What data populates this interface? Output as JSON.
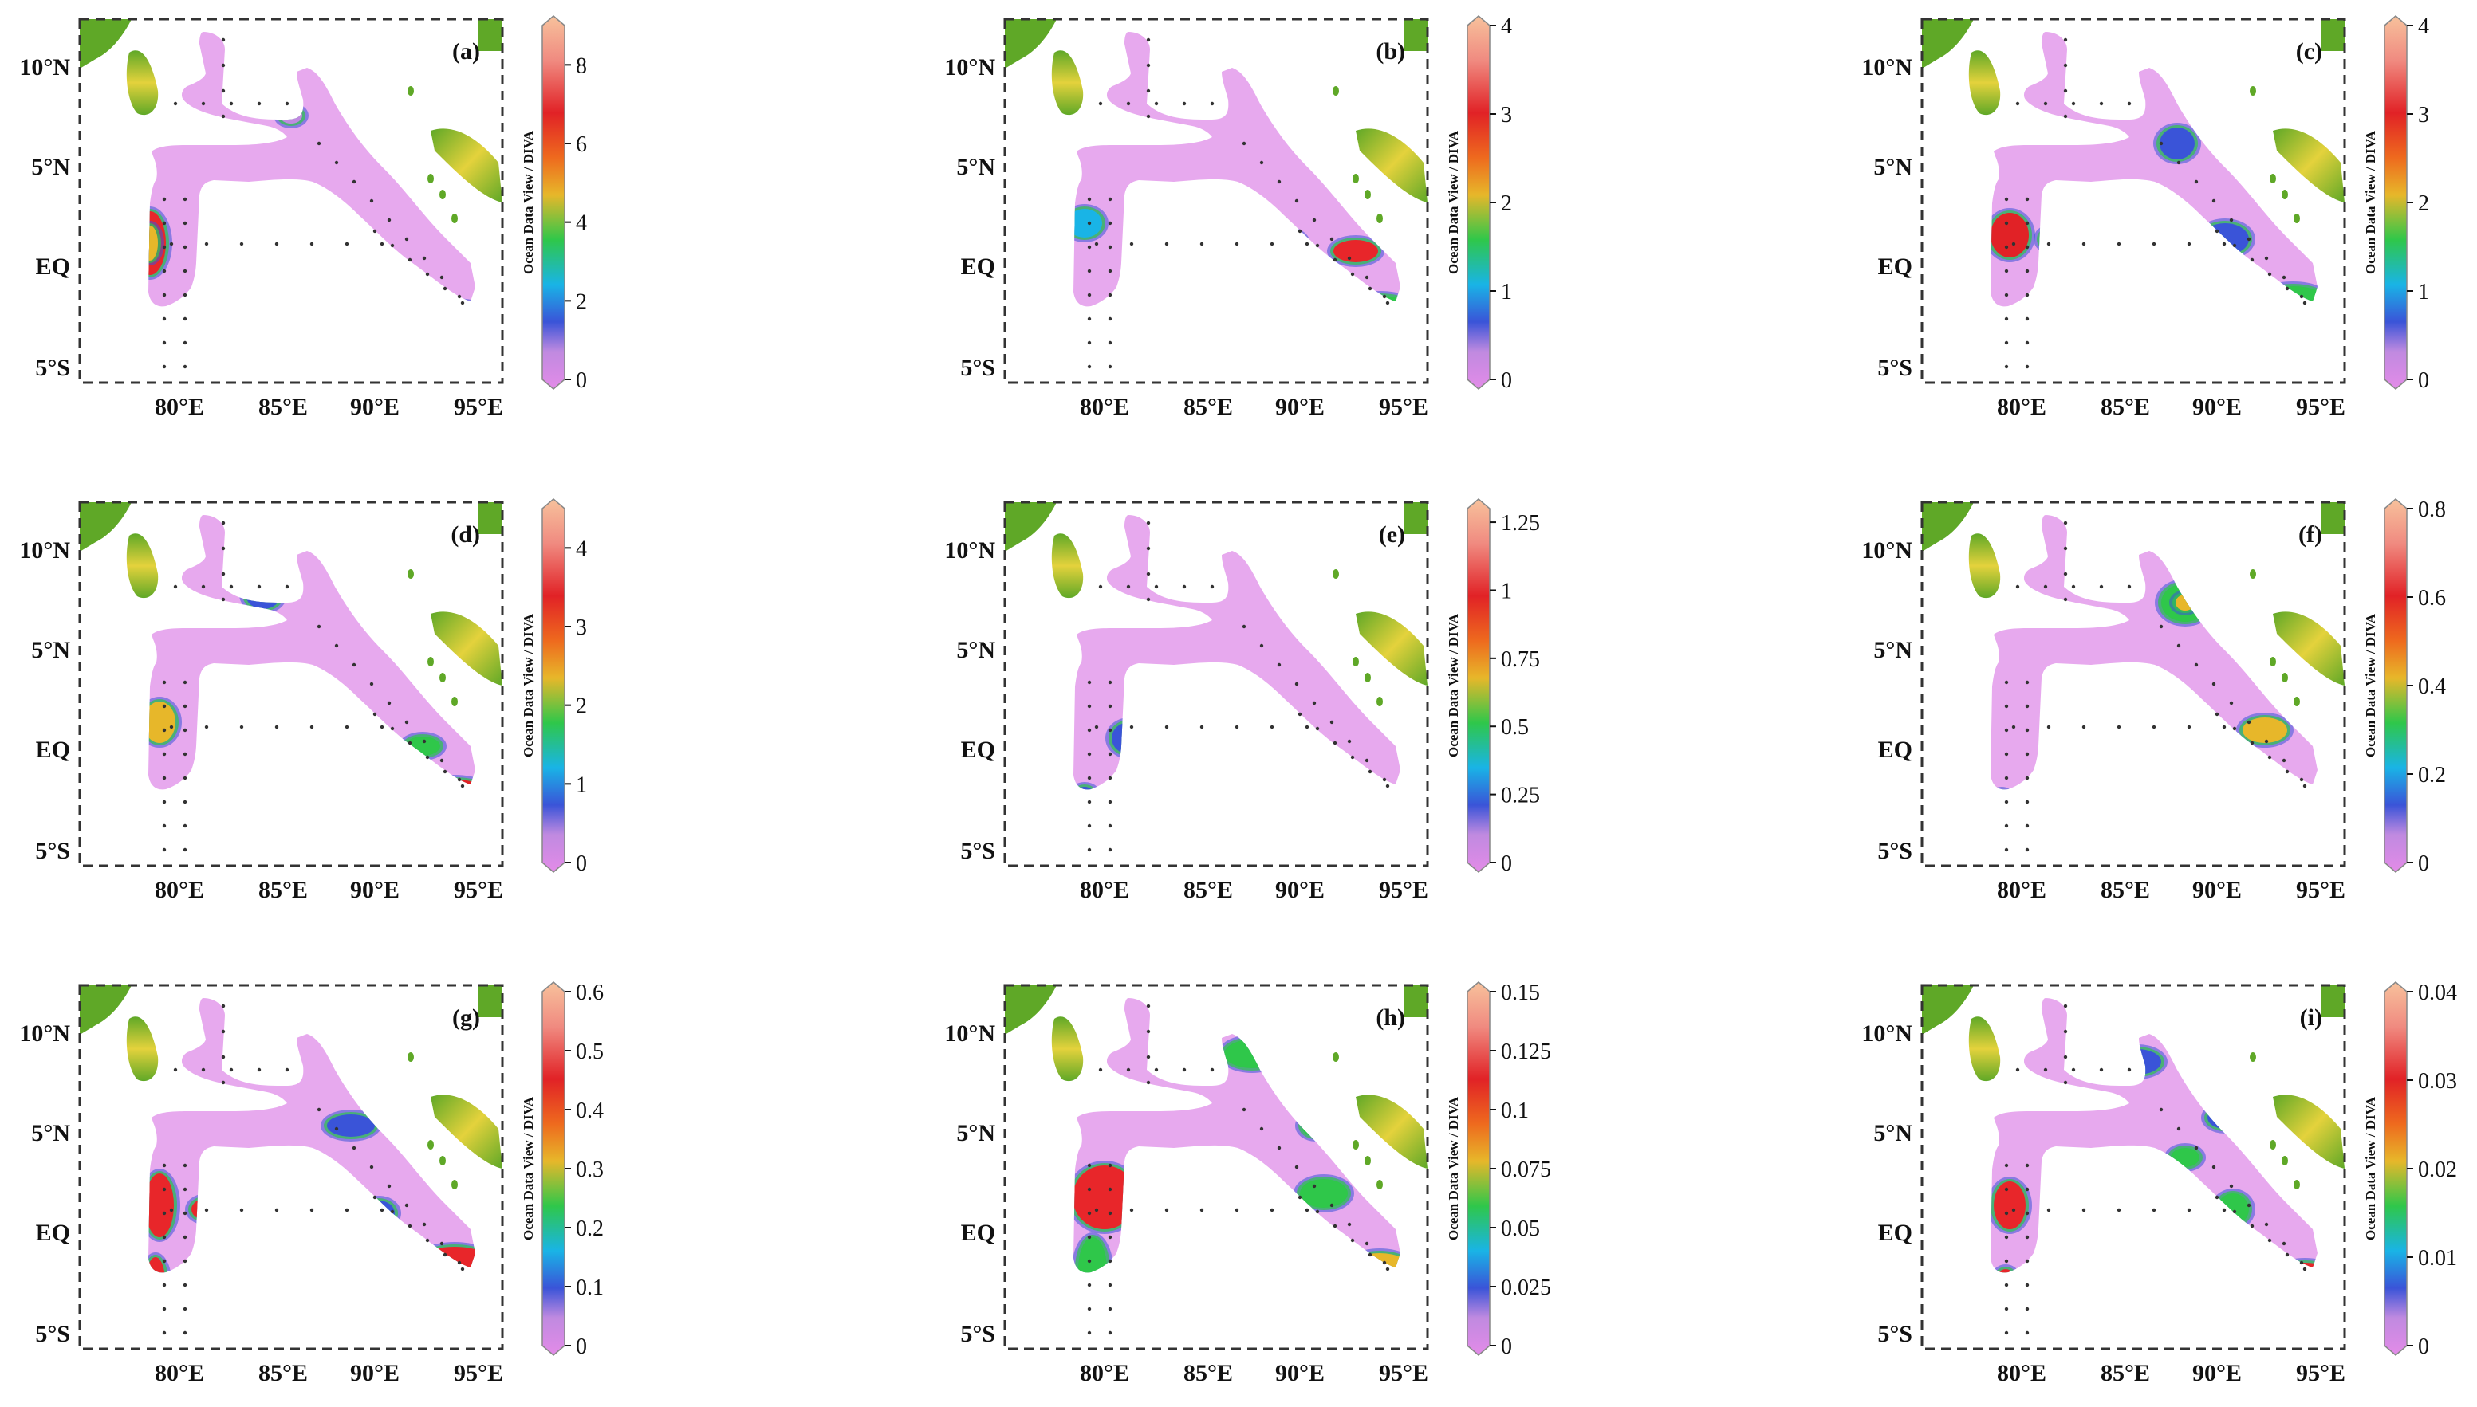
{
  "figure": {
    "panel_labels": [
      "(a)",
      "(b)",
      "(c)",
      "(d)",
      "(e)",
      "(f)",
      "(g)",
      "(h)",
      "(i)"
    ],
    "lat_labels": [
      "10°N",
      "5°N",
      "EQ",
      "5°S"
    ],
    "lon_labels": [
      "80°E",
      "85°E",
      "90°E",
      "95°E",
      "95°E"
    ],
    "colorbar_title": "Ocean Data View / DIVA"
  },
  "colorbars": [
    {
      "ticks": [
        "8",
        "6",
        "4",
        "2",
        "0"
      ],
      "max": 9
    },
    {
      "ticks": [
        "4",
        "3",
        "2",
        "1",
        "0"
      ],
      "max": 4
    },
    {
      "ticks": [
        "4",
        "3",
        "2",
        "1",
        "0"
      ],
      "max": 4
    },
    {
      "ticks": [
        "4",
        "3",
        "2",
        "1",
        "0"
      ],
      "max": 4.5
    },
    {
      "ticks": [
        "1.25",
        "1",
        "0.75",
        "0.5",
        "0.25",
        "0"
      ],
      "max": 1.3
    },
    {
      "ticks": [
        "0.8",
        "0.6",
        "0.4",
        "0.2",
        "0"
      ],
      "max": 0.8
    },
    {
      "ticks": [
        "0.6",
        "0.5",
        "0.4",
        "0.3",
        "0.2",
        "0.1",
        "0"
      ],
      "max": 0.6
    },
    {
      "ticks": [
        "0.15",
        "0.125",
        "0.1",
        "0.075",
        "0.05",
        "0.025",
        "0"
      ],
      "max": 0.15
    },
    {
      "ticks": [
        "0.04",
        "0.03",
        "0.02",
        "0.01",
        "0"
      ],
      "max": 0.04
    }
  ],
  "colors": {
    "land": "#5fa827",
    "land_high": "#e4d23c",
    "low": "#d98fe8",
    "mid": "#44c94a",
    "high": "#e8262a",
    "frame": "#333333"
  }
}
